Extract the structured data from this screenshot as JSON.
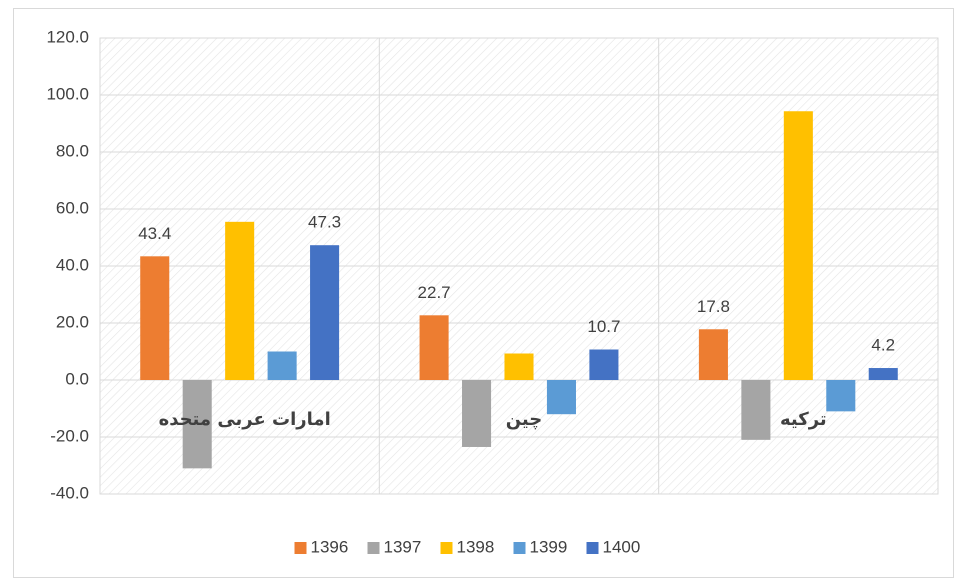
{
  "chart_data": {
    "type": "bar",
    "categories": [
      "امارات عربی متحده",
      "چین",
      "ترکیه"
    ],
    "series": [
      {
        "name": "1396",
        "color": "#ed7d31",
        "values": [
          43.4,
          22.7,
          17.8
        ],
        "labels": true
      },
      {
        "name": "1397",
        "color": "#a5a5a5",
        "values": [
          -31,
          -23.5,
          -21
        ]
      },
      {
        "name": "1398",
        "color": "#ffc000",
        "values": [
          55.5,
          9.3,
          94.3
        ]
      },
      {
        "name": "1399",
        "color": "#5b9bd5",
        "values": [
          10,
          -12,
          -11
        ]
      },
      {
        "name": "1400",
        "color": "#4472c4",
        "values": [
          47.3,
          10.7,
          4.2
        ],
        "labels": true
      }
    ],
    "ylim": [
      -40,
      120
    ],
    "yticks": [
      {
        "value": -40,
        "label": "-40.0"
      },
      {
        "value": -20,
        "label": "-20.0"
      },
      {
        "value": 0,
        "label": "0.0"
      },
      {
        "value": 20,
        "label": "20.0"
      },
      {
        "value": 40,
        "label": "40.0"
      },
      {
        "value": 60,
        "label": "60.0"
      },
      {
        "value": 80,
        "label": "80.0"
      },
      {
        "value": 100,
        "label": "100.0"
      },
      {
        "value": 120,
        "label": "120.0"
      }
    ],
    "grid": true,
    "legend": "bottom"
  }
}
